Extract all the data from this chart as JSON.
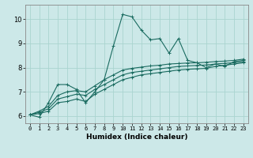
{
  "title": "",
  "xlabel": "Humidex (Indice chaleur)",
  "bg_color": "#cce8e8",
  "line_color": "#1a6b60",
  "grid_color": "#aad4d0",
  "xlim": [
    -0.5,
    23.5
  ],
  "ylim": [
    5.7,
    10.6
  ],
  "xticks": [
    0,
    1,
    2,
    3,
    4,
    5,
    6,
    7,
    8,
    9,
    10,
    11,
    12,
    13,
    14,
    15,
    16,
    17,
    18,
    19,
    20,
    21,
    22,
    23
  ],
  "yticks": [
    6,
    7,
    8,
    9,
    10
  ],
  "lines": [
    {
      "x": [
        0,
        1,
        2,
        3,
        4,
        5,
        6,
        7,
        8,
        9,
        10,
        11,
        12,
        13,
        14,
        15,
        16,
        17,
        18,
        19,
        20,
        21,
        22,
        23
      ],
      "y": [
        6.05,
        5.95,
        6.55,
        7.3,
        7.3,
        7.1,
        6.55,
        7.0,
        7.5,
        8.9,
        10.2,
        10.1,
        9.55,
        9.15,
        9.2,
        8.6,
        9.2,
        8.3,
        8.2,
        8.0,
        8.15,
        8.05,
        8.25,
        8.3
      ]
    },
    {
      "x": [
        0,
        1,
        2,
        3,
        4,
        5,
        6,
        7,
        8,
        9,
        10,
        11,
        12,
        13,
        14,
        15,
        16,
        17,
        18,
        19,
        20,
        21,
        22,
        23
      ],
      "y": [
        6.05,
        6.1,
        6.2,
        6.55,
        6.6,
        6.7,
        6.6,
        6.9,
        7.1,
        7.3,
        7.5,
        7.6,
        7.7,
        7.75,
        7.8,
        7.85,
        7.9,
        7.93,
        7.95,
        7.97,
        8.05,
        8.1,
        8.15,
        8.2
      ]
    },
    {
      "x": [
        0,
        1,
        2,
        3,
        4,
        5,
        6,
        7,
        8,
        9,
        10,
        11,
        12,
        13,
        14,
        15,
        16,
        17,
        18,
        19,
        20,
        21,
        22,
        23
      ],
      "y": [
        6.05,
        6.15,
        6.3,
        6.7,
        6.8,
        6.9,
        6.85,
        7.1,
        7.3,
        7.5,
        7.7,
        7.8,
        7.85,
        7.9,
        7.95,
        8.0,
        8.05,
        8.07,
        8.09,
        8.11,
        8.15,
        8.18,
        8.2,
        8.25
      ]
    },
    {
      "x": [
        0,
        1,
        2,
        3,
        4,
        5,
        6,
        7,
        8,
        9,
        10,
        11,
        12,
        13,
        14,
        15,
        16,
        17,
        18,
        19,
        20,
        21,
        22,
        23
      ],
      "y": [
        6.05,
        6.2,
        6.4,
        6.85,
        7.0,
        7.05,
        7.0,
        7.25,
        7.5,
        7.7,
        7.9,
        7.97,
        8.02,
        8.07,
        8.1,
        8.15,
        8.17,
        8.19,
        8.2,
        8.22,
        8.25,
        8.27,
        8.3,
        8.35
      ]
    }
  ]
}
